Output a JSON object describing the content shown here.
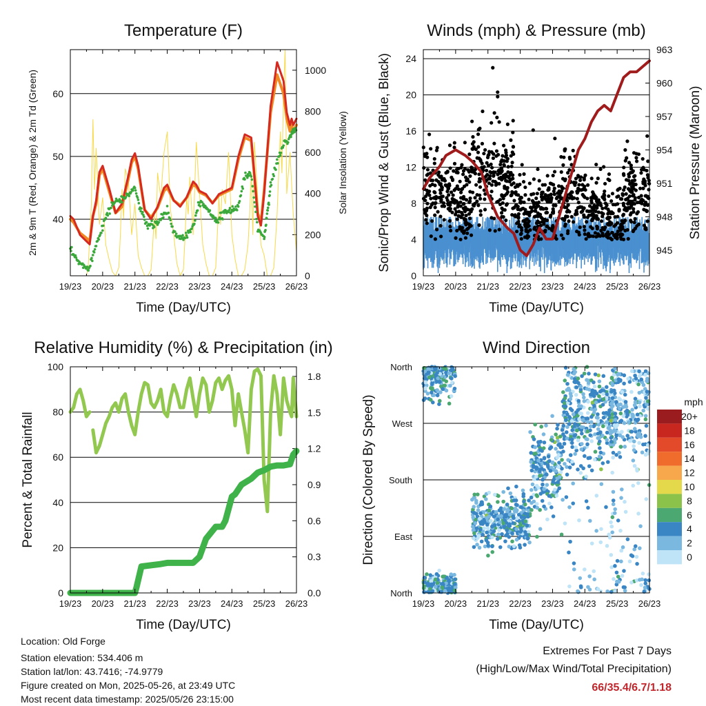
{
  "footer": {
    "location": "Location: Old Forge",
    "elevation": "Station elevation: 534.406 m",
    "latlon": "Station lat/lon: 43.7416; -74.9779",
    "created": "Figure created on Mon, 2025-05-26, at 23:49 UTC",
    "recent": "Most recent data timestamp: 2025/05/26 23:15:00"
  },
  "extremes": {
    "title": "Extremes For Past 7 Days",
    "subtitle": "(High/Low/Max Wind/Total Precipitation)",
    "values": "66/35.4/6.7/1.18",
    "value_color": "#c0262b"
  },
  "colors": {
    "temp2m": "#d42a20",
    "temp9m": "#f08a24",
    "dewpoint": "#3aa83a",
    "solar": "#f7d94a",
    "gust": "#000000",
    "wind": "#4a90d0",
    "pressure": "#a01c1c",
    "rh": "#92c850",
    "precip": "#3fb24a"
  },
  "chart_data": [
    {
      "type": "line",
      "title": "Temperature (F)",
      "xlabel": "Time (Day/UTC)",
      "ylabel": "2m & 9m T (Red, Orange) & 2m Td (Green)",
      "y2label": "Solar Insolation (Yellow)",
      "x_ticks": [
        "19/23",
        "20/23",
        "21/23",
        "22/23",
        "23/23",
        "24/23",
        "25/23",
        "26/23"
      ],
      "ylim": [
        31,
        67
      ],
      "y_ticks": [
        40,
        50,
        60
      ],
      "y2lim": [
        0,
        1100
      ],
      "y2_ticks": [
        0,
        200,
        400,
        600,
        800,
        1000
      ],
      "grid": "horizontal",
      "series": [
        {
          "key": "temp2m",
          "x": [
            0,
            0.1,
            0.3,
            0.5,
            0.6,
            0.7,
            0.8,
            0.9,
            1.0,
            1.2,
            1.4,
            1.6,
            1.8,
            1.9,
            2.0,
            2.1,
            2.3,
            2.5,
            2.7,
            2.9,
            3.0,
            3.2,
            3.4,
            3.6,
            3.8,
            3.9,
            4.0,
            4.2,
            4.4,
            4.6,
            4.8,
            5.0,
            5.2,
            5.4,
            5.6,
            5.8,
            5.9,
            6.0,
            6.2,
            6.4,
            6.6,
            6.7,
            6.8,
            6.85,
            6.9,
            7.0
          ],
          "y": [
            40.5,
            40,
            37.5,
            36.5,
            36,
            40.5,
            43,
            47.5,
            48.5,
            45,
            41,
            42.5,
            47,
            49.5,
            50.5,
            48.5,
            41.5,
            40,
            42,
            45,
            45.5,
            43,
            42,
            43.5,
            46,
            45.5,
            44.5,
            44,
            42.5,
            44,
            44.5,
            45,
            50,
            53.5,
            53,
            40.5,
            39,
            44,
            58,
            65,
            62,
            57,
            55,
            56,
            55,
            56
          ]
        },
        {
          "key": "temp9m",
          "x": [
            0,
            0.1,
            0.3,
            0.5,
            0.6,
            0.7,
            0.8,
            0.9,
            1.0,
            1.2,
            1.4,
            1.6,
            1.8,
            1.9,
            2.0,
            2.1,
            2.3,
            2.5,
            2.7,
            2.9,
            3.0,
            3.2,
            3.4,
            3.6,
            3.8,
            3.9,
            4.0,
            4.2,
            4.4,
            4.6,
            4.8,
            5.0,
            5.2,
            5.4,
            5.6,
            5.8,
            5.9,
            6.0,
            6.2,
            6.4,
            6.6,
            6.7,
            6.8,
            6.85,
            6.9,
            7.0
          ],
          "y": [
            40,
            39.5,
            37.8,
            37,
            36.5,
            40.5,
            42.5,
            47,
            48,
            44.5,
            41,
            42,
            46.5,
            49,
            50,
            48,
            41.5,
            40.3,
            41.8,
            44.5,
            45,
            43,
            42.2,
            43.4,
            45.5,
            45.2,
            44.3,
            43.8,
            42.6,
            43.8,
            44.3,
            44.8,
            49.5,
            53,
            52.5,
            41,
            39.5,
            44.5,
            57,
            63,
            60,
            56,
            54,
            55,
            54,
            55
          ]
        },
        {
          "key": "dewpoint",
          "x": [
            0,
            0.2,
            0.4,
            0.6,
            0.8,
            1.0,
            1.2,
            1.4,
            1.6,
            1.8,
            2.0,
            2.2,
            2.4,
            2.6,
            2.8,
            3.0,
            3.2,
            3.4,
            3.6,
            3.8,
            4.0,
            4.2,
            4.4,
            4.6,
            4.8,
            5.0,
            5.2,
            5.4,
            5.6,
            5.8,
            6.0,
            6.1,
            6.2,
            6.4,
            6.6,
            6.8,
            6.9,
            7.0
          ],
          "y": [
            35,
            33.5,
            32.5,
            32.5,
            36,
            39,
            41.5,
            43,
            43,
            44,
            45,
            41,
            39,
            39,
            40,
            41.5,
            38,
            37,
            37.5,
            39,
            43,
            42,
            40.5,
            40,
            41,
            41.5,
            42,
            47,
            47,
            38.5,
            37,
            41,
            45.5,
            49,
            52,
            53,
            54,
            54
          ]
        },
        {
          "key": "solar",
          "x": [
            0,
            0.5,
            0.55,
            0.6,
            0.65,
            0.7,
            0.75,
            0.8,
            0.9,
            1.0,
            1.1,
            1.2,
            1.3,
            1.4,
            1.5,
            1.55,
            1.6,
            1.65,
            1.7,
            1.8,
            1.9,
            2.0,
            2.1,
            2.2,
            2.3,
            2.4,
            2.5,
            2.55,
            2.6,
            2.65,
            2.7,
            2.8,
            2.9,
            3.0,
            3.1,
            3.2,
            3.3,
            3.4,
            3.5,
            3.55,
            3.6,
            3.65,
            3.7,
            3.8,
            3.9,
            4.0,
            4.1,
            4.2,
            4.3,
            4.4,
            4.5,
            4.55,
            4.6,
            4.65,
            4.7,
            4.8,
            4.9,
            5.0,
            5.1,
            5.2,
            5.3,
            5.4,
            5.5,
            5.55,
            5.6,
            5.65,
            5.7,
            5.8,
            5.9,
            6.0,
            6.1,
            6.2,
            6.3,
            6.4,
            6.5,
            6.55,
            6.6,
            6.65,
            6.7,
            6.8,
            6.9,
            7.0
          ],
          "y": [
            0,
            0,
            40,
            180,
            350,
            760,
            420,
            620,
            250,
            380,
            150,
            80,
            20,
            0,
            40,
            200,
            420,
            280,
            520,
            460,
            200,
            350,
            100,
            40,
            0,
            0,
            30,
            150,
            300,
            180,
            500,
            380,
            600,
            700,
            320,
            200,
            60,
            0,
            30,
            180,
            380,
            300,
            480,
            200,
            650,
            400,
            150,
            60,
            0,
            0,
            40,
            200,
            380,
            250,
            420,
            350,
            600,
            200,
            80,
            0,
            0,
            30,
            150,
            300,
            500,
            200,
            650,
            380,
            150,
            100,
            0,
            0,
            40,
            300,
            700,
            500,
            900,
            1100,
            400,
            600,
            300,
            120
          ]
        }
      ]
    },
    {
      "type": "scatter",
      "title": "Winds (mph) & Pressure (mb)",
      "xlabel": "Time (Day/UTC)",
      "ylabel": "Sonic/Prop Wind & Gust (Blue, Black)",
      "y2label": "Station Pressure (Maroon)",
      "x_ticks": [
        "19/23",
        "20/23",
        "21/23",
        "22/23",
        "23/23",
        "24/23",
        "25/23",
        "26/23"
      ],
      "ylim": [
        0,
        25
      ],
      "y_ticks": [
        0,
        4,
        8,
        12,
        16,
        20,
        24
      ],
      "y2lim": [
        942.7,
        963
      ],
      "y2_ticks": [
        945,
        948,
        951,
        954,
        957,
        960,
        963
      ],
      "grid": "horizontal",
      "series": [
        {
          "key": "pressure",
          "x": [
            0,
            0.2,
            0.5,
            0.7,
            1.0,
            1.3,
            1.5,
            1.8,
            2.0,
            2.3,
            2.6,
            2.8,
            3.0,
            3.2,
            3.4,
            3.6,
            3.8,
            4.0,
            4.2,
            4.4,
            4.6,
            4.8,
            5.0,
            5.2,
            5.4,
            5.6,
            5.8,
            6.0,
            6.2,
            6.4,
            6.6,
            6.8,
            7.0
          ],
          "y": [
            950.5,
            951.5,
            952.5,
            953.5,
            954,
            953.5,
            953,
            952,
            950,
            948,
            947,
            946.5,
            945,
            944.5,
            945.5,
            947,
            946,
            946,
            948,
            950,
            952,
            954,
            955,
            956.5,
            957.5,
            958,
            957.5,
            959,
            960.5,
            961,
            961,
            961.5,
            962
          ]
        },
        {
          "key": "gust",
          "description": "scattered gust points, mostly 4-14 mph with peaks near 23 mph on day 21/22",
          "peak": 23
        },
        {
          "key": "wind",
          "description": "sustained wind band, mostly 1-6 mph",
          "typical_range": [
            1,
            6
          ]
        }
      ]
    },
    {
      "type": "line",
      "title": "Relative Humidity (%) & Precipitation (in)",
      "xlabel": "Time (Day/UTC)",
      "ylabel": "Percent & Total Rainfall",
      "x_ticks": [
        "19/23",
        "20/23",
        "21/23",
        "22/23",
        "23/23",
        "24/23",
        "25/23",
        "26/23"
      ],
      "ylim": [
        0,
        100
      ],
      "y_ticks": [
        0,
        20,
        40,
        60,
        80,
        100
      ],
      "y2lim": [
        0,
        1.88
      ],
      "y2_ticks": [
        "0.0",
        "0.3",
        "0.6",
        "0.9",
        "1.2",
        "1.5",
        "1.8"
      ],
      "grid": "horizontal",
      "series": [
        {
          "key": "rh",
          "x": [
            0,
            0.1,
            0.2,
            0.3,
            0.4,
            0.5,
            0.6,
            0.65,
            0.7,
            0.8,
            0.9,
            1.0,
            1.1,
            1.2,
            1.3,
            1.4,
            1.5,
            1.6,
            1.7,
            1.8,
            1.9,
            2.0,
            2.1,
            2.2,
            2.3,
            2.4,
            2.5,
            2.6,
            2.7,
            2.8,
            2.9,
            3.0,
            3.1,
            3.2,
            3.3,
            3.4,
            3.5,
            3.6,
            3.7,
            3.8,
            3.9,
            4.0,
            4.1,
            4.2,
            4.3,
            4.4,
            4.5,
            4.6,
            4.7,
            4.8,
            4.9,
            5.0,
            5.1,
            5.2,
            5.3,
            5.4,
            5.5,
            5.6,
            5.7,
            5.8,
            5.9,
            6.0,
            6.1,
            6.2,
            6.3,
            6.4,
            6.5,
            6.6,
            6.7,
            6.8,
            6.85,
            6.9,
            7.0
          ],
          "y": [
            80,
            82,
            88,
            90,
            85,
            78,
            80,
            null,
            72,
            62,
            65,
            70,
            75,
            78,
            82,
            84,
            80,
            86,
            88,
            80,
            74,
            70,
            80,
            88,
            93,
            92,
            84,
            82,
            85,
            90,
            80,
            78,
            86,
            92,
            88,
            82,
            82,
            90,
            95,
            86,
            78,
            88,
            95,
            92,
            80,
            85,
            93,
            95,
            90,
            94,
            96,
            90,
            74,
            88,
            80,
            72,
            62,
            90,
            98,
            99,
            96,
            50,
            36,
            80,
            96,
            88,
            70,
            95,
            85,
            80,
            78,
            95,
            78
          ]
        },
        {
          "key": "precip",
          "x": [
            0,
            0.5,
            1.0,
            1.5,
            2.0,
            2.05,
            2.2,
            2.5,
            2.8,
            3.0,
            3.5,
            3.8,
            4.0,
            4.2,
            4.5,
            4.7,
            4.8,
            5.0,
            5.1,
            5.3,
            5.6,
            5.8,
            6.0,
            6.2,
            6.4,
            6.6,
            6.8,
            6.9,
            7.0
          ],
          "y": [
            0,
            0,
            0,
            0,
            0,
            0.05,
            0.22,
            0.23,
            0.24,
            0.25,
            0.25,
            0.25,
            0.3,
            0.45,
            0.55,
            0.55,
            0.6,
            0.8,
            0.82,
            0.9,
            0.95,
            1.0,
            1.02,
            1.05,
            1.06,
            1.06,
            1.07,
            1.15,
            1.18
          ]
        }
      ]
    },
    {
      "type": "scatter",
      "title": "Wind Direction",
      "xlabel": "Time (Day/UTC)",
      "ylabel": "Direction (Colored By Speed)",
      "x_ticks": [
        "19/23",
        "20/23",
        "21/23",
        "22/23",
        "23/23",
        "24/23",
        "25/23",
        "26/23"
      ],
      "y_ticks": [
        "North",
        "East",
        "South",
        "West",
        "North"
      ],
      "ylim": [
        0,
        360
      ],
      "grid": "horizontal",
      "legend_title": "mph",
      "legend": [
        {
          "label": "20+",
          "color": "#9b1c1f"
        },
        {
          "label": "18",
          "color": "#c8271f"
        },
        {
          "label": "16",
          "color": "#e24a2a"
        },
        {
          "label": "14",
          "color": "#f06c2c"
        },
        {
          "label": "12",
          "color": "#f7a84c"
        },
        {
          "label": "10",
          "color": "#e4d94b"
        },
        {
          "label": "8",
          "color": "#8bc34a"
        },
        {
          "label": "6",
          "color": "#4aa870"
        },
        {
          "label": "4",
          "color": "#3a86c4"
        },
        {
          "label": "2",
          "color": "#7ab8e0"
        },
        {
          "label": "0",
          "color": "#bfe4f7"
        }
      ],
      "clusters": [
        {
          "x_range": [
            0,
            1.0
          ],
          "dir_center": 345,
          "dir_spread": 20,
          "speed": 3
        },
        {
          "x_range": [
            0,
            1.0
          ],
          "dir_center": 10,
          "dir_spread": 8,
          "speed": 3
        },
        {
          "x_range": [
            1.5,
            3.3
          ],
          "dir_center": 115,
          "dir_spread": 20,
          "speed": 3
        },
        {
          "x_range": [
            3.3,
            4.3
          ],
          "dir_center": 200,
          "dir_spread": 35,
          "speed": 3
        },
        {
          "x_range": [
            4.3,
            6.0
          ],
          "dir_center": 280,
          "dir_spread": 40,
          "speed": 3
        },
        {
          "x_range": [
            5.8,
            7.0
          ],
          "dir_center": 300,
          "dir_spread": 50,
          "speed": 2
        }
      ]
    }
  ]
}
